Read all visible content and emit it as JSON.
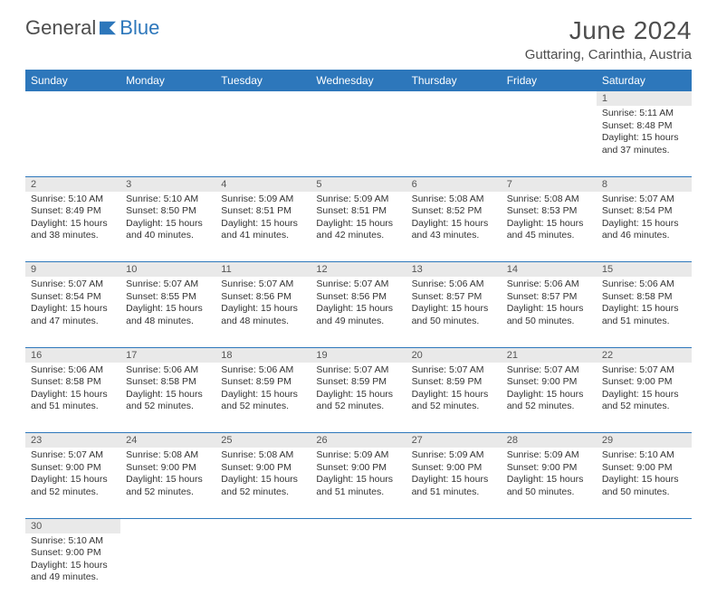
{
  "logo": {
    "text1": "General",
    "text2": "Blue"
  },
  "title": "June 2024",
  "location": "Guttaring, Carinthia, Austria",
  "colors": {
    "header_bg": "#2d77bb",
    "header_fg": "#ffffff",
    "daynum_bg": "#e9e9e9",
    "rule": "#2d77bb",
    "text": "#333333",
    "logo_gray": "#4d4d4d",
    "logo_blue": "#2d77bb"
  },
  "weekdays": [
    "Sunday",
    "Monday",
    "Tuesday",
    "Wednesday",
    "Thursday",
    "Friday",
    "Saturday"
  ],
  "weeks": [
    [
      null,
      null,
      null,
      null,
      null,
      null,
      {
        "n": 1,
        "sr": "5:11 AM",
        "ss": "8:48 PM",
        "dl": "15 hours and 37 minutes."
      }
    ],
    [
      {
        "n": 2,
        "sr": "5:10 AM",
        "ss": "8:49 PM",
        "dl": "15 hours and 38 minutes."
      },
      {
        "n": 3,
        "sr": "5:10 AM",
        "ss": "8:50 PM",
        "dl": "15 hours and 40 minutes."
      },
      {
        "n": 4,
        "sr": "5:09 AM",
        "ss": "8:51 PM",
        "dl": "15 hours and 41 minutes."
      },
      {
        "n": 5,
        "sr": "5:09 AM",
        "ss": "8:51 PM",
        "dl": "15 hours and 42 minutes."
      },
      {
        "n": 6,
        "sr": "5:08 AM",
        "ss": "8:52 PM",
        "dl": "15 hours and 43 minutes."
      },
      {
        "n": 7,
        "sr": "5:08 AM",
        "ss": "8:53 PM",
        "dl": "15 hours and 45 minutes."
      },
      {
        "n": 8,
        "sr": "5:07 AM",
        "ss": "8:54 PM",
        "dl": "15 hours and 46 minutes."
      }
    ],
    [
      {
        "n": 9,
        "sr": "5:07 AM",
        "ss": "8:54 PM",
        "dl": "15 hours and 47 minutes."
      },
      {
        "n": 10,
        "sr": "5:07 AM",
        "ss": "8:55 PM",
        "dl": "15 hours and 48 minutes."
      },
      {
        "n": 11,
        "sr": "5:07 AM",
        "ss": "8:56 PM",
        "dl": "15 hours and 48 minutes."
      },
      {
        "n": 12,
        "sr": "5:07 AM",
        "ss": "8:56 PM",
        "dl": "15 hours and 49 minutes."
      },
      {
        "n": 13,
        "sr": "5:06 AM",
        "ss": "8:57 PM",
        "dl": "15 hours and 50 minutes."
      },
      {
        "n": 14,
        "sr": "5:06 AM",
        "ss": "8:57 PM",
        "dl": "15 hours and 50 minutes."
      },
      {
        "n": 15,
        "sr": "5:06 AM",
        "ss": "8:58 PM",
        "dl": "15 hours and 51 minutes."
      }
    ],
    [
      {
        "n": 16,
        "sr": "5:06 AM",
        "ss": "8:58 PM",
        "dl": "15 hours and 51 minutes."
      },
      {
        "n": 17,
        "sr": "5:06 AM",
        "ss": "8:58 PM",
        "dl": "15 hours and 52 minutes."
      },
      {
        "n": 18,
        "sr": "5:06 AM",
        "ss": "8:59 PM",
        "dl": "15 hours and 52 minutes."
      },
      {
        "n": 19,
        "sr": "5:07 AM",
        "ss": "8:59 PM",
        "dl": "15 hours and 52 minutes."
      },
      {
        "n": 20,
        "sr": "5:07 AM",
        "ss": "8:59 PM",
        "dl": "15 hours and 52 minutes."
      },
      {
        "n": 21,
        "sr": "5:07 AM",
        "ss": "9:00 PM",
        "dl": "15 hours and 52 minutes."
      },
      {
        "n": 22,
        "sr": "5:07 AM",
        "ss": "9:00 PM",
        "dl": "15 hours and 52 minutes."
      }
    ],
    [
      {
        "n": 23,
        "sr": "5:07 AM",
        "ss": "9:00 PM",
        "dl": "15 hours and 52 minutes."
      },
      {
        "n": 24,
        "sr": "5:08 AM",
        "ss": "9:00 PM",
        "dl": "15 hours and 52 minutes."
      },
      {
        "n": 25,
        "sr": "5:08 AM",
        "ss": "9:00 PM",
        "dl": "15 hours and 52 minutes."
      },
      {
        "n": 26,
        "sr": "5:09 AM",
        "ss": "9:00 PM",
        "dl": "15 hours and 51 minutes."
      },
      {
        "n": 27,
        "sr": "5:09 AM",
        "ss": "9:00 PM",
        "dl": "15 hours and 51 minutes."
      },
      {
        "n": 28,
        "sr": "5:09 AM",
        "ss": "9:00 PM",
        "dl": "15 hours and 50 minutes."
      },
      {
        "n": 29,
        "sr": "5:10 AM",
        "ss": "9:00 PM",
        "dl": "15 hours and 50 minutes."
      }
    ],
    [
      {
        "n": 30,
        "sr": "5:10 AM",
        "ss": "9:00 PM",
        "dl": "15 hours and 49 minutes."
      },
      null,
      null,
      null,
      null,
      null,
      null
    ]
  ],
  "labels": {
    "sunrise": "Sunrise:",
    "sunset": "Sunset:",
    "daylight": "Daylight:"
  }
}
